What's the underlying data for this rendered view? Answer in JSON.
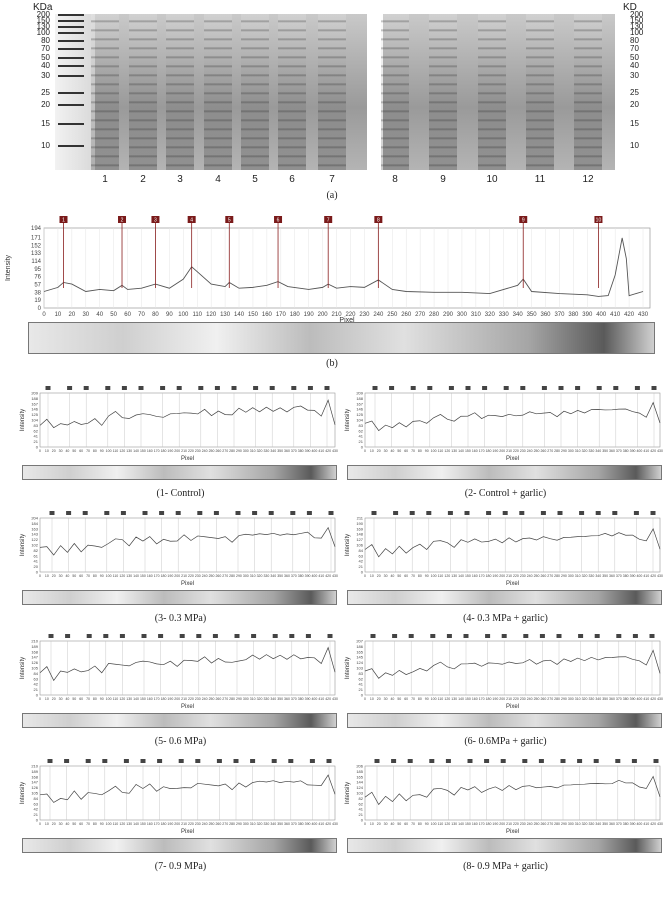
{
  "panel_a": {
    "left_unit": "KDa",
    "right_unit": "KD",
    "ladder_left": [
      "200",
      "150",
      "130",
      "100",
      "80",
      "70",
      "50",
      "40",
      "30",
      "25",
      "20",
      "15",
      "10"
    ],
    "ladder_right": [
      "200",
      "150",
      "130",
      "100",
      "80",
      "70",
      "50",
      "40",
      "30",
      "25",
      "20",
      "15",
      "10"
    ],
    "lanes": [
      "1",
      "2",
      "3",
      "4",
      "5",
      "6",
      "7",
      "8",
      "9",
      "10",
      "11",
      "12"
    ],
    "caption": "(a)"
  },
  "panel_b": {
    "caption": "(b)",
    "chart_data": {
      "type": "line",
      "ylabel": "Intensity",
      "xlabel": "Pixel",
      "yticks": [
        "194",
        "171",
        "152",
        "133",
        "114",
        "95",
        "76",
        "57",
        "38",
        "19",
        "0"
      ],
      "xticks": [
        "0",
        "10",
        "20",
        "30",
        "40",
        "50",
        "60",
        "70",
        "80",
        "90",
        "100",
        "110",
        "120",
        "130",
        "140",
        "150",
        "160",
        "170",
        "180",
        "190",
        "200",
        "210",
        "220",
        "230",
        "240",
        "250",
        "260",
        "270",
        "280",
        "290",
        "300",
        "310",
        "320",
        "330",
        "340",
        "350",
        "360",
        "370",
        "380",
        "390",
        "400",
        "410",
        "420",
        "430"
      ],
      "markers": [
        "1",
        "2",
        "3",
        "4",
        "5",
        "6",
        "7",
        "8",
        "9",
        "10"
      ],
      "marker_x": [
        14,
        56,
        80,
        106,
        133,
        168,
        204,
        240,
        344,
        398
      ],
      "x": [
        0,
        10,
        14,
        20,
        30,
        40,
        50,
        56,
        60,
        70,
        80,
        90,
        100,
        106,
        110,
        120,
        130,
        133,
        140,
        150,
        160,
        168,
        175,
        190,
        200,
        204,
        210,
        220,
        230,
        240,
        250,
        260,
        280,
        300,
        320,
        340,
        344,
        350,
        370,
        390,
        398,
        405,
        410,
        415,
        418,
        420,
        425,
        430
      ],
      "y": [
        40,
        50,
        62,
        58,
        40,
        45,
        42,
        55,
        45,
        48,
        58,
        48,
        70,
        100,
        88,
        58,
        52,
        62,
        48,
        50,
        55,
        64,
        52,
        45,
        50,
        58,
        48,
        52,
        50,
        68,
        45,
        40,
        38,
        38,
        35,
        55,
        70,
        40,
        35,
        32,
        28,
        30,
        80,
        170,
        120,
        30,
        35,
        40
      ],
      "ylim": [
        0,
        194
      ],
      "xlim": [
        0,
        435
      ]
    }
  },
  "subplots": [
    {
      "caption": "(1- Control)",
      "yticks": [
        "209",
        "188",
        "167",
        "146",
        "125",
        "104",
        "83",
        "62",
        "41",
        "21",
        "0"
      ]
    },
    {
      "caption": "(2- Control + garlic)",
      "yticks": [
        "209",
        "188",
        "167",
        "146",
        "125",
        "104",
        "83",
        "62",
        "41",
        "21",
        "0"
      ]
    },
    {
      "caption": "(3- 0.3 MPa)",
      "yticks": [
        "204",
        "184",
        "163",
        "143",
        "122",
        "102",
        "82",
        "61",
        "41",
        "20",
        "0"
      ]
    },
    {
      "caption": "(4- 0.3 MPa + garlic)",
      "yticks": [
        "211",
        "190",
        "169",
        "148",
        "127",
        "106",
        "84",
        "63",
        "42",
        "21",
        "0"
      ]
    },
    {
      "caption": "(5- 0.6 MPa)",
      "yticks": [
        "210",
        "189",
        "168",
        "147",
        "126",
        "105",
        "84",
        "63",
        "42",
        "21",
        "0"
      ]
    },
    {
      "caption": "(6- 0.6MPa + garlic)",
      "yticks": [
        "207",
        "186",
        "165",
        "145",
        "124",
        "103",
        "83",
        "62",
        "41",
        "21",
        "0"
      ]
    },
    {
      "caption": "(7- 0.9 MPa)",
      "yticks": [
        "210",
        "189",
        "168",
        "147",
        "126",
        "105",
        "84",
        "63",
        "42",
        "21",
        "0"
      ]
    },
    {
      "caption": "(8- 0.9 MPa + garlic)",
      "yticks": [
        "206",
        "185",
        "165",
        "144",
        "124",
        "103",
        "82",
        "62",
        "41",
        "21",
        "0"
      ]
    }
  ],
  "subplot_common": {
    "ylabel": "Intensity",
    "xlabel": "Pixel",
    "xticks": [
      "0",
      "10",
      "20",
      "30",
      "40",
      "50",
      "60",
      "70",
      "80",
      "90",
      "100",
      "110",
      "120",
      "130",
      "140",
      "150",
      "160",
      "170",
      "180",
      "190",
      "200",
      "210",
      "220",
      "230",
      "240",
      "250",
      "260",
      "270",
      "280",
      "290",
      "300",
      "310",
      "320",
      "330",
      "340",
      "350",
      "360",
      "370",
      "380",
      "390",
      "400",
      "410",
      "420",
      "430"
    ]
  }
}
